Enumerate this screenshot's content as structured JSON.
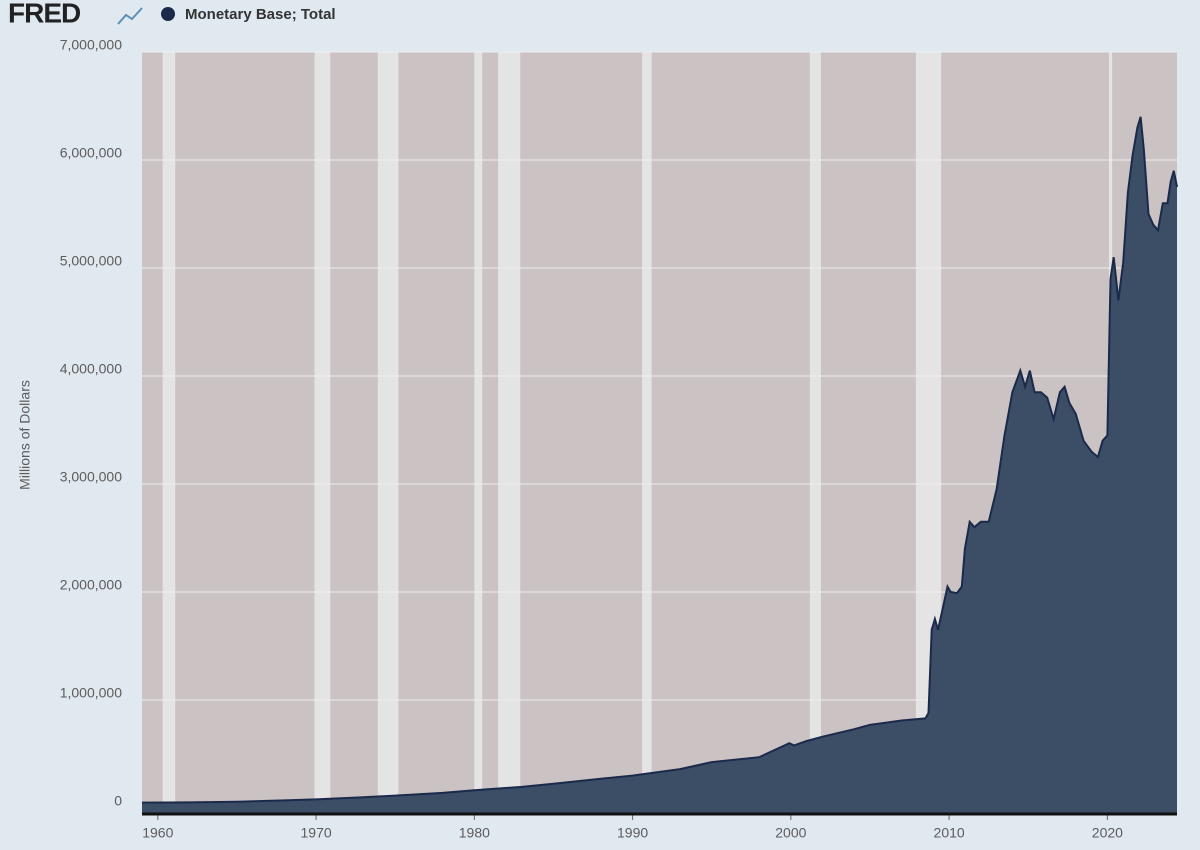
{
  "header": {
    "logo": "FRED"
  },
  "chart_data": {
    "type": "area",
    "y_label": "Millions of Dollars",
    "xlim": [
      1959,
      2024.4
    ],
    "xticks": [
      1960,
      1970,
      1980,
      1990,
      2000,
      2010,
      2020
    ],
    "ylim": [
      0,
      7000000
    ],
    "yticks": [
      0,
      {
        "value": 1000000,
        "label": "1,000,000"
      },
      {
        "value": 2000000,
        "label": "2,000,000"
      },
      {
        "value": 3000000,
        "label": "3,000,000"
      },
      {
        "value": 4000000,
        "label": "4,000,000"
      },
      {
        "value": 5000000,
        "label": "5,000,000"
      },
      {
        "value": 6000000,
        "label": "6,000,000"
      },
      {
        "value": 7000000,
        "label": "7,000,000"
      }
    ],
    "grid": true,
    "recessions": [
      [
        1960.3,
        1961.1
      ],
      [
        1969.9,
        1970.9
      ],
      [
        1973.9,
        1975.2
      ],
      [
        1980.0,
        1980.5
      ],
      [
        1981.5,
        1982.9
      ],
      [
        1990.6,
        1991.2
      ],
      [
        2001.2,
        2001.9
      ],
      [
        2007.9,
        2009.5
      ],
      [
        2020.1,
        2020.3
      ]
    ],
    "recession_color": "#e4e4e4",
    "background": "#cbc2c3",
    "series": [
      {
        "name": "Monetary Base; Total",
        "color": "#1b2a4a",
        "fill": "#3c4d66",
        "x": [
          1959,
          1962,
          1965,
          1968,
          1970,
          1973,
          1975,
          1978,
          1980,
          1983,
          1985,
          1988,
          1990,
          1993,
          1995,
          1998,
          1999.9,
          2000.2,
          2001,
          2002,
          2004,
          2005,
          2007,
          2008.5,
          2008.7,
          2008.9,
          2009.1,
          2009.3,
          2009.6,
          2009.9,
          2010.1,
          2010.5,
          2010.8,
          2011.0,
          2011.3,
          2011.6,
          2012.0,
          2012.5,
          2013.0,
          2013.5,
          2014.0,
          2014.5,
          2014.8,
          2015.1,
          2015.4,
          2015.8,
          2016.2,
          2016.6,
          2017.0,
          2017.3,
          2017.6,
          2018.0,
          2018.5,
          2019.0,
          2019.4,
          2019.7,
          2020.0,
          2020.2,
          2020.4,
          2020.7,
          2021.0,
          2021.3,
          2021.6,
          2021.9,
          2022.1,
          2022.3,
          2022.6,
          2022.9,
          2023.2,
          2023.5,
          2023.8,
          2024.0,
          2024.2,
          2024.4
        ],
        "values": [
          50000,
          52000,
          58000,
          70000,
          80000,
          100000,
          115000,
          140000,
          165000,
          195000,
          225000,
          270000,
          300000,
          360000,
          425000,
          470000,
          600000,
          580000,
          620000,
          660000,
          730000,
          770000,
          810000,
          830000,
          880000,
          1650000,
          1750000,
          1650000,
          1850000,
          2050000,
          2000000,
          1990000,
          2050000,
          2400000,
          2650000,
          2600000,
          2650000,
          2650000,
          2950000,
          3450000,
          3850000,
          4050000,
          3900000,
          4050000,
          3850000,
          3850000,
          3800000,
          3600000,
          3850000,
          3900000,
          3750000,
          3650000,
          3400000,
          3300000,
          3250000,
          3400000,
          3450000,
          4900000,
          5100000,
          4700000,
          5050000,
          5700000,
          6050000,
          6300000,
          6400000,
          6100000,
          5500000,
          5400000,
          5350000,
          5600000,
          5600000,
          5800000,
          5900000,
          5750000
        ]
      }
    ]
  }
}
